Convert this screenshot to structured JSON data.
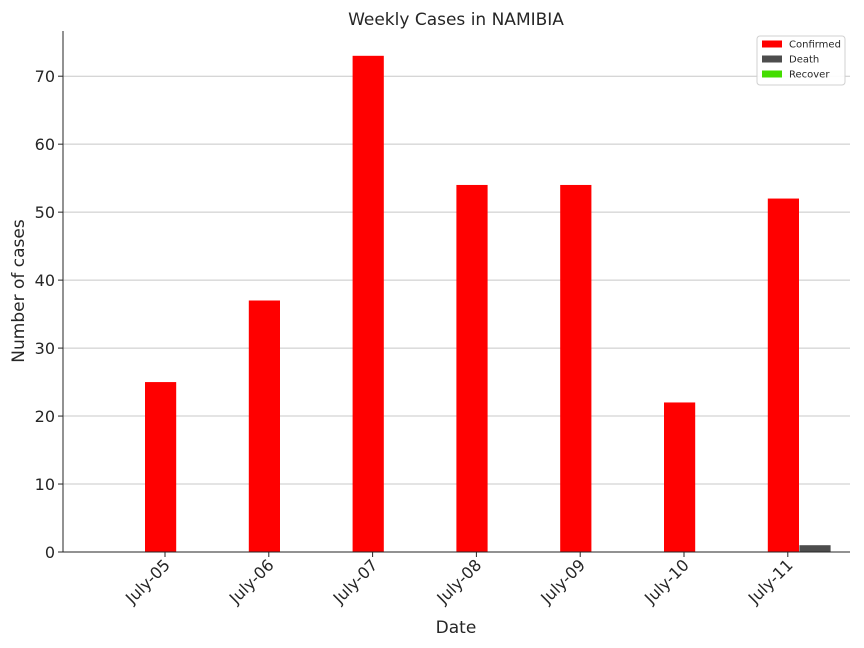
{
  "chart_data": {
    "type": "bar",
    "title": "Weekly Cases in NAMIBIA",
    "xlabel": "Date",
    "ylabel": "Number of cases",
    "categories": [
      "July-05",
      "July-06",
      "July-07",
      "July-08",
      "July-09",
      "July-10",
      "July-11"
    ],
    "series": [
      {
        "name": "Confirmed",
        "color": "#ff0000",
        "values": [
          25,
          37,
          73,
          54,
          54,
          22,
          52
        ]
      },
      {
        "name": "Death",
        "color": "#4d4d4d",
        "values": [
          0,
          0,
          0,
          0,
          0,
          0,
          1
        ]
      },
      {
        "name": "Recover",
        "color": "#44dd00",
        "values": [
          0,
          0,
          0,
          0,
          0,
          0,
          0
        ]
      }
    ],
    "ylim": [
      0,
      76.65
    ],
    "yticks": [
      0,
      10,
      20,
      30,
      40,
      50,
      60,
      70
    ],
    "grid": "y",
    "legend": "top-right"
  }
}
